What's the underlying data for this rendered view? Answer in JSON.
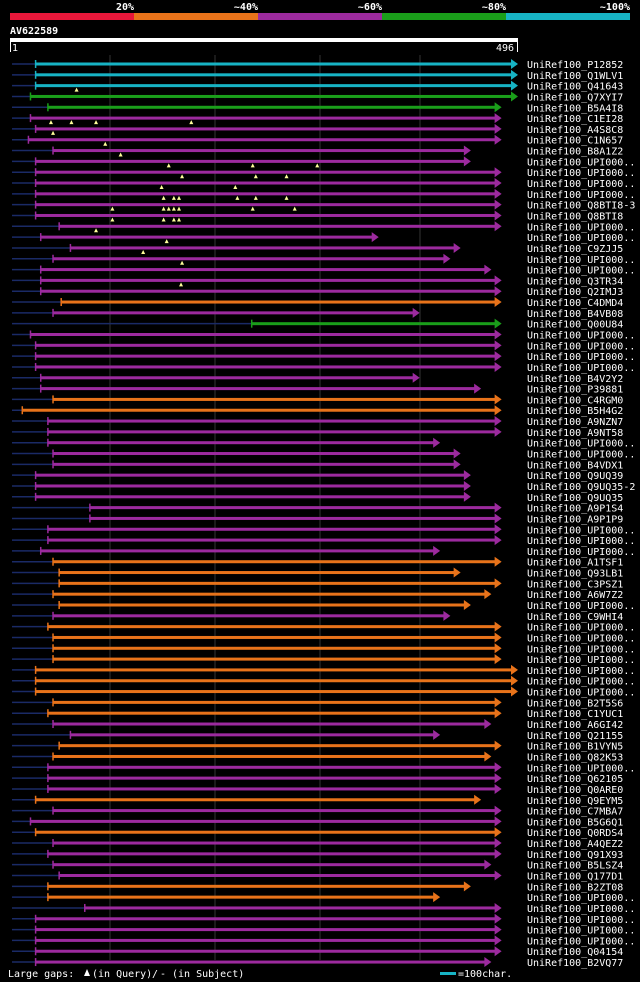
{
  "chart_data": {
    "type": "alignment-overview",
    "query": {
      "name": "AV622589",
      "start": "1",
      "end": "496",
      "length": 496
    },
    "identity_legend": [
      {
        "label": "20%",
        "color": "#e8173a"
      },
      {
        "label": "~40%",
        "color": "#e8731a"
      },
      {
        "label": "~60%",
        "color": "#9c2a9e"
      },
      {
        "label": "~80%",
        "color": "#1a9e1a"
      },
      {
        "label": "~100%",
        "color": "#17b3c4"
      }
    ],
    "footer": {
      "gaps_label": "Large gaps:",
      "gap_query": "(in Query)",
      "gap_sep": "/",
      "gap_dash": "-",
      "gap_subject": "(in Subject)",
      "scale_label": "=100char."
    },
    "hits": [
      {
        "id": "UniRef100_P12852",
        "cls": 4,
        "start": 25,
        "end": 496,
        "gaps": []
      },
      {
        "id": "UniRef100_Q1WLV1",
        "cls": 4,
        "start": 25,
        "end": 496,
        "gaps": []
      },
      {
        "id": "UniRef100_Q41643",
        "cls": 4,
        "start": 25,
        "end": 496,
        "gaps": [
          65
        ]
      },
      {
        "id": "UniRef100_Q7XYI7",
        "cls": 3,
        "start": 20,
        "end": 496,
        "gaps": []
      },
      {
        "id": "UniRef100_B5A4I8",
        "cls": 3,
        "start": 37,
        "end": 480,
        "gaps": []
      },
      {
        "id": "UniRef100_C1EI28",
        "cls": 2,
        "start": 20,
        "end": 480,
        "gaps": [
          40,
          60,
          84,
          177
        ]
      },
      {
        "id": "UniRef100_A4S8C8",
        "cls": 2,
        "start": 25,
        "end": 480,
        "gaps": [
          42
        ]
      },
      {
        "id": "UniRef100_C1N657",
        "cls": 2,
        "start": 18,
        "end": 480,
        "gaps": [
          93
        ]
      },
      {
        "id": "UniRef100_B8A1Z2",
        "cls": 2,
        "start": 42,
        "end": 450,
        "gaps": [
          108
        ]
      },
      {
        "id": "UniRef100_UPI000..",
        "cls": 2,
        "start": 25,
        "end": 450,
        "gaps": [
          155,
          237,
          300
        ]
      },
      {
        "id": "UniRef100_UPI000..",
        "cls": 2,
        "start": 25,
        "end": 480,
        "gaps": [
          168,
          240,
          270
        ]
      },
      {
        "id": "UniRef100_UPI000..",
        "cls": 2,
        "start": 25,
        "end": 480,
        "gaps": [
          148,
          220
        ]
      },
      {
        "id": "UniRef100_UPI000..",
        "cls": 2,
        "start": 25,
        "end": 480,
        "gaps": [
          150,
          160,
          165,
          222,
          240,
          270
        ]
      },
      {
        "id": "UniRef100_Q8BTI8-3",
        "cls": 2,
        "start": 25,
        "end": 480,
        "gaps": [
          100,
          150,
          155,
          160,
          165,
          237,
          278
        ]
      },
      {
        "id": "UniRef100_Q8BTI8",
        "cls": 2,
        "start": 25,
        "end": 480,
        "gaps": [
          100,
          150,
          160,
          165
        ]
      },
      {
        "id": "UniRef100_UPI000..",
        "cls": 2,
        "start": 48,
        "end": 480,
        "gaps": [
          84
        ]
      },
      {
        "id": "UniRef100_UPI000..",
        "cls": 2,
        "start": 30,
        "end": 360,
        "gaps": [
          153
        ]
      },
      {
        "id": "UniRef100_C9ZJJ5",
        "cls": 2,
        "start": 59,
        "end": 440,
        "gaps": [
          130
        ]
      },
      {
        "id": "UniRef100_UPI000..",
        "cls": 2,
        "start": 42,
        "end": 430,
        "gaps": [
          168
        ]
      },
      {
        "id": "UniRef100_UPI000..",
        "cls": 2,
        "start": 30,
        "end": 470,
        "gaps": []
      },
      {
        "id": "UniRef100_Q3TR34",
        "cls": 2,
        "start": 30,
        "end": 480,
        "gaps": [
          167
        ]
      },
      {
        "id": "UniRef100_Q2IMJ3",
        "cls": 2,
        "start": 30,
        "end": 480,
        "gaps": []
      },
      {
        "id": "UniRef100_C4DMD4",
        "cls": 1,
        "start": 50,
        "end": 480,
        "gaps": []
      },
      {
        "id": "UniRef100_B4VB08",
        "cls": 2,
        "start": 42,
        "end": 400,
        "gaps": []
      },
      {
        "id": "UniRef100_Q00U84",
        "cls": 3,
        "start": 236,
        "end": 480,
        "gaps": []
      },
      {
        "id": "UniRef100_UPI000..",
        "cls": 2,
        "start": 20,
        "end": 480,
        "gaps": []
      },
      {
        "id": "UniRef100_UPI000..",
        "cls": 2,
        "start": 25,
        "end": 480,
        "gaps": []
      },
      {
        "id": "UniRef100_UPI000..",
        "cls": 2,
        "start": 25,
        "end": 480,
        "gaps": []
      },
      {
        "id": "UniRef100_UPI000..",
        "cls": 2,
        "start": 25,
        "end": 480,
        "gaps": []
      },
      {
        "id": "UniRef100_B4V2Y2",
        "cls": 2,
        "start": 30,
        "end": 400,
        "gaps": []
      },
      {
        "id": "UniRef100_P39881",
        "cls": 2,
        "start": 30,
        "end": 460,
        "gaps": []
      },
      {
        "id": "UniRef100_C4RGM0",
        "cls": 1,
        "start": 42,
        "end": 480,
        "gaps": []
      },
      {
        "id": "UniRef100_B5H4G2",
        "cls": 1,
        "start": 12,
        "end": 480,
        "gaps": []
      },
      {
        "id": "UniRef100_A9NZN7",
        "cls": 2,
        "start": 37,
        "end": 480,
        "gaps": []
      },
      {
        "id": "UniRef100_A9NT58",
        "cls": 2,
        "start": 37,
        "end": 480,
        "gaps": []
      },
      {
        "id": "UniRef100_UPI000..",
        "cls": 2,
        "start": 37,
        "end": 420,
        "gaps": []
      },
      {
        "id": "UniRef100_UPI000..",
        "cls": 2,
        "start": 42,
        "end": 440,
        "gaps": []
      },
      {
        "id": "UniRef100_B4VDX1",
        "cls": 2,
        "start": 42,
        "end": 440,
        "gaps": []
      },
      {
        "id": "UniRef100_Q9UQ39",
        "cls": 2,
        "start": 25,
        "end": 450,
        "gaps": []
      },
      {
        "id": "UniRef100_Q9UQ35-2",
        "cls": 2,
        "start": 25,
        "end": 450,
        "gaps": []
      },
      {
        "id": "UniRef100_Q9UQ35",
        "cls": 2,
        "start": 25,
        "end": 450,
        "gaps": []
      },
      {
        "id": "UniRef100_A9P1S4",
        "cls": 2,
        "start": 78,
        "end": 480,
        "gaps": []
      },
      {
        "id": "UniRef100_A9P1P9",
        "cls": 2,
        "start": 78,
        "end": 480,
        "gaps": []
      },
      {
        "id": "UniRef100_UPI000..",
        "cls": 2,
        "start": 37,
        "end": 480,
        "gaps": []
      },
      {
        "id": "UniRef100_UPI000..",
        "cls": 2,
        "start": 37,
        "end": 480,
        "gaps": []
      },
      {
        "id": "UniRef100_UPI000..",
        "cls": 2,
        "start": 30,
        "end": 420,
        "gaps": []
      },
      {
        "id": "UniRef100_A1TSF1",
        "cls": 1,
        "start": 42,
        "end": 480,
        "gaps": []
      },
      {
        "id": "UniRef100_Q93LB1",
        "cls": 1,
        "start": 48,
        "end": 440,
        "gaps": []
      },
      {
        "id": "UniRef100_C3PSZ1",
        "cls": 1,
        "start": 48,
        "end": 480,
        "gaps": []
      },
      {
        "id": "UniRef100_A6W7Z2",
        "cls": 1,
        "start": 42,
        "end": 470,
        "gaps": []
      },
      {
        "id": "UniRef100_UPI000..",
        "cls": 1,
        "start": 48,
        "end": 450,
        "gaps": []
      },
      {
        "id": "UniRef100_C9WHI4",
        "cls": 2,
        "start": 42,
        "end": 430,
        "gaps": []
      },
      {
        "id": "UniRef100_UPI000..",
        "cls": 1,
        "start": 37,
        "end": 480,
        "gaps": []
      },
      {
        "id": "UniRef100_UPI000..",
        "cls": 1,
        "start": 42,
        "end": 480,
        "gaps": []
      },
      {
        "id": "UniRef100_UPI000..",
        "cls": 1,
        "start": 42,
        "end": 480,
        "gaps": []
      },
      {
        "id": "UniRef100_UPI000..",
        "cls": 1,
        "start": 42,
        "end": 480,
        "gaps": []
      },
      {
        "id": "UniRef100_UPI000..",
        "cls": 1,
        "start": 25,
        "end": 496,
        "gaps": []
      },
      {
        "id": "UniRef100_UPI000..",
        "cls": 1,
        "start": 25,
        "end": 496,
        "gaps": []
      },
      {
        "id": "UniRef100_UPI000..",
        "cls": 1,
        "start": 25,
        "end": 496,
        "gaps": []
      },
      {
        "id": "UniRef100_B2T5S6",
        "cls": 1,
        "start": 42,
        "end": 480,
        "gaps": []
      },
      {
        "id": "UniRef100_C1YUC1",
        "cls": 1,
        "start": 37,
        "end": 480,
        "gaps": []
      },
      {
        "id": "UniRef100_A6GI42",
        "cls": 2,
        "start": 42,
        "end": 470,
        "gaps": []
      },
      {
        "id": "UniRef100_Q21155",
        "cls": 2,
        "start": 59,
        "end": 420,
        "gaps": []
      },
      {
        "id": "UniRef100_B1VYN5",
        "cls": 1,
        "start": 48,
        "end": 480,
        "gaps": []
      },
      {
        "id": "UniRef100_Q82K53",
        "cls": 1,
        "start": 42,
        "end": 470,
        "gaps": []
      },
      {
        "id": "UniRef100_UPI000..",
        "cls": 2,
        "start": 37,
        "end": 480,
        "gaps": []
      },
      {
        "id": "UniRef100_Q62105",
        "cls": 2,
        "start": 37,
        "end": 480,
        "gaps": []
      },
      {
        "id": "UniRef100_Q0ARE0",
        "cls": 2,
        "start": 37,
        "end": 480,
        "gaps": []
      },
      {
        "id": "UniRef100_Q9EYM5",
        "cls": 1,
        "start": 25,
        "end": 460,
        "gaps": []
      },
      {
        "id": "UniRef100_C7MBA7",
        "cls": 2,
        "start": 42,
        "end": 480,
        "gaps": []
      },
      {
        "id": "UniRef100_B5G6Q1",
        "cls": 2,
        "start": 20,
        "end": 480,
        "gaps": []
      },
      {
        "id": "UniRef100_Q0RDS4",
        "cls": 1,
        "start": 25,
        "end": 480,
        "gaps": []
      },
      {
        "id": "UniRef100_A4QEZ2",
        "cls": 2,
        "start": 42,
        "end": 480,
        "gaps": []
      },
      {
        "id": "UniRef100_Q91X93",
        "cls": 2,
        "start": 37,
        "end": 480,
        "gaps": []
      },
      {
        "id": "UniRef100_B5LSZ4",
        "cls": 2,
        "start": 42,
        "end": 470,
        "gaps": []
      },
      {
        "id": "UniRef100_Q177D1",
        "cls": 2,
        "start": 48,
        "end": 480,
        "gaps": []
      },
      {
        "id": "UniRef100_B2ZT08",
        "cls": 1,
        "start": 37,
        "end": 450,
        "gaps": []
      },
      {
        "id": "UniRef100_UPI000..",
        "cls": 1,
        "start": 37,
        "end": 420,
        "gaps": []
      },
      {
        "id": "UniRef100_UPI000..",
        "cls": 2,
        "start": 73,
        "end": 480,
        "gaps": []
      },
      {
        "id": "UniRef100_UPI000..",
        "cls": 2,
        "start": 25,
        "end": 480,
        "gaps": []
      },
      {
        "id": "UniRef100_UPI000..",
        "cls": 2,
        "start": 25,
        "end": 480,
        "gaps": []
      },
      {
        "id": "UniRef100_UPI000..",
        "cls": 2,
        "start": 25,
        "end": 480,
        "gaps": []
      },
      {
        "id": "UniRef100_Q04154",
        "cls": 2,
        "start": 25,
        "end": 480,
        "gaps": []
      },
      {
        "id": "UniRef100_B2VQ77",
        "cls": 2,
        "start": 25,
        "end": 470,
        "gaps": []
      }
    ]
  }
}
